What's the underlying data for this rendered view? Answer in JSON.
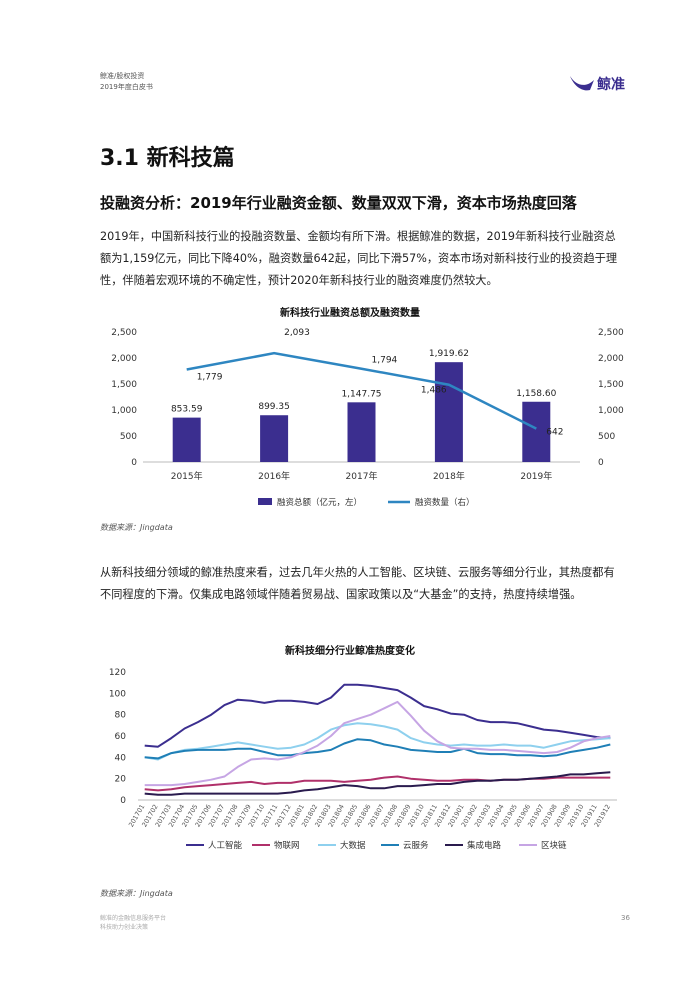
{
  "header": {
    "left_line1": "鲸准/股权投资",
    "left_line2": "2019年度白皮书",
    "logo_text": "鲸准"
  },
  "section_title": "3.1 新科技篇",
  "subtitle": "投融资分析：2019年行业融资金额、数量双双下滑，资本市场热度回落",
  "paragraph1": "2019年，中国新科技行业的投融资数量、金额均有所下滑。根据鲸准的数据，2019年新科技行业融资总额为1,159亿元，同比下降40%，融资数量642起，同比下滑57%，资本市场对新科技行业的投资趋于理性，伴随着宏观环境的不确定性，预计2020年新科技行业的融资难度仍然较大。",
  "paragraph2": "从新科技细分领域的鲸准热度来看，过去几年火热的人工智能、区块链、云服务等细分行业，其热度都有不同程度的下滑。仅集成电路领域伴随着贸易战、国家政策以及“大基金”的支持，热度持续增强。",
  "source1": "数据来源：Jingdata",
  "source2": "数据来源：Jingdata",
  "footer": {
    "line1": "鲸准的金融信息服务平台",
    "line2": "科技助力创业决策",
    "page": "36"
  },
  "colors": {
    "bar": "#3b2e8f",
    "line": "#2e86c1",
    "ai": "#3b2e8f",
    "iot": "#b0306a",
    "bigdata": "#8ed0ee",
    "cloud": "#1f7fb6",
    "ic": "#2a1b4e",
    "blockchain": "#c6a5e4"
  },
  "chart_data": [
    {
      "type": "bar",
      "title": "新科技行业融资总额及融资数量",
      "categories": [
        "2015年",
        "2016年",
        "2017年",
        "2018年",
        "2019年"
      ],
      "series": [
        {
          "name": "融资总额（亿元，左）",
          "type": "bar",
          "values": [
            853.59,
            899.35,
            1147.75,
            1919.62,
            1158.6
          ],
          "labels": [
            "853.59",
            "899.35",
            "1,147.75",
            "1,919.62",
            "1,158.60"
          ]
        },
        {
          "name": "融资数量（右）",
          "type": "line",
          "values": [
            1779,
            2093,
            1794,
            1486,
            642
          ],
          "labels": [
            "1,779",
            "2,093",
            "1,794",
            "1,486",
            "642"
          ]
        }
      ],
      "ylim": [
        0,
        2500
      ],
      "y2lim": [
        0,
        2500
      ],
      "yticks": [
        "0",
        "500",
        "1,000",
        "1,500",
        "2,000",
        "2,500"
      ],
      "legend_position": "bottom"
    },
    {
      "type": "line",
      "title": "新科技细分行业鲸准热度变化",
      "x": [
        "201701",
        "201702",
        "201703",
        "201704",
        "201705",
        "201706",
        "201707",
        "201708",
        "201709",
        "201710",
        "201711",
        "201712",
        "201801",
        "201802",
        "201803",
        "201804",
        "201805",
        "201806",
        "201807",
        "201808",
        "201809",
        "201810",
        "201811",
        "201812",
        "201901",
        "201902",
        "201903",
        "201904",
        "201905",
        "201906",
        "201907",
        "201908",
        "201909",
        "201910",
        "201911",
        "201912"
      ],
      "ylim": [
        0,
        120
      ],
      "yticks": [
        "0",
        "20",
        "40",
        "60",
        "80",
        "100",
        "120"
      ],
      "series": [
        {
          "name": "人工智能",
          "values": [
            51,
            50,
            58,
            67,
            73,
            80,
            89,
            94,
            93,
            91,
            93,
            93,
            92,
            90,
            96,
            108,
            108,
            107,
            105,
            103,
            96,
            88,
            85,
            81,
            80,
            75,
            73,
            73,
            72,
            69,
            66,
            65,
            63,
            61,
            59,
            58
          ]
        },
        {
          "name": "物联网",
          "values": [
            10,
            9,
            10,
            12,
            13,
            14,
            15,
            16,
            17,
            15,
            16,
            16,
            18,
            18,
            18,
            17,
            18,
            19,
            21,
            22,
            20,
            19,
            18,
            18,
            19,
            19,
            18,
            19,
            19,
            20,
            20,
            21,
            21,
            21,
            21,
            21
          ]
        },
        {
          "name": "大数据",
          "values": [
            40,
            38,
            44,
            47,
            48,
            50,
            52,
            54,
            52,
            50,
            48,
            49,
            52,
            58,
            66,
            70,
            72,
            71,
            69,
            66,
            58,
            54,
            52,
            51,
            52,
            51,
            51,
            52,
            51,
            51,
            49,
            52,
            55,
            56,
            57,
            58
          ]
        },
        {
          "name": "云服务",
          "values": [
            40,
            39,
            44,
            46,
            47,
            47,
            47,
            48,
            48,
            45,
            42,
            42,
            44,
            45,
            47,
            53,
            57,
            56,
            52,
            50,
            47,
            46,
            45,
            45,
            48,
            44,
            43,
            43,
            42,
            42,
            41,
            42,
            45,
            47,
            49,
            52
          ]
        },
        {
          "name": "集成电路",
          "values": [
            6,
            5,
            5,
            6,
            6,
            6,
            6,
            6,
            6,
            6,
            6,
            7,
            9,
            10,
            12,
            14,
            13,
            11,
            11,
            13,
            13,
            14,
            15,
            15,
            17,
            18,
            18,
            19,
            19,
            20,
            21,
            22,
            24,
            24,
            25,
            26
          ]
        },
        {
          "name": "区块链",
          "values": [
            14,
            14,
            14,
            15,
            17,
            19,
            22,
            31,
            38,
            39,
            38,
            40,
            45,
            51,
            60,
            72,
            76,
            80,
            86,
            92,
            79,
            65,
            55,
            49,
            48,
            48,
            47,
            47,
            46,
            45,
            44,
            45,
            49,
            55,
            58,
            60
          ]
        }
      ],
      "legend_position": "bottom"
    }
  ]
}
